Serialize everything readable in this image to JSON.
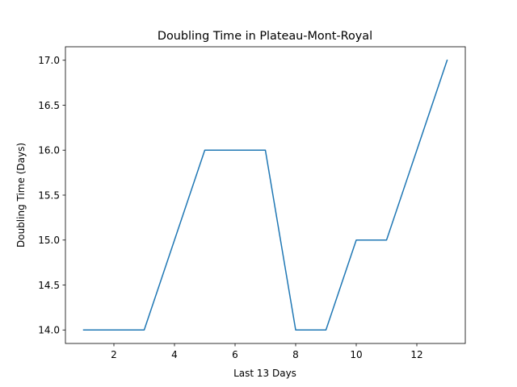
{
  "chart_data": {
    "type": "line",
    "title": "Doubling Time in  Plateau-Mont-Royal",
    "xlabel": "Last 13 Days",
    "ylabel": "Doubling Time (Days)",
    "x": [
      1,
      2,
      3,
      4,
      5,
      6,
      7,
      8,
      9,
      10,
      11,
      12,
      13
    ],
    "series": [
      {
        "values": [
          14,
          14,
          14,
          15,
          16,
          16,
          16,
          14,
          14,
          15,
          15,
          16,
          17
        ],
        "color": "#1f77b4"
      }
    ],
    "xlim": [
      0.4,
      13.6
    ],
    "ylim": [
      13.85,
      17.15
    ],
    "xticks": [
      2,
      4,
      6,
      8,
      10,
      12
    ],
    "xtick_labels": [
      "2",
      "4",
      "6",
      "8",
      "10",
      "12"
    ],
    "yticks": [
      14.0,
      14.5,
      15.0,
      15.5,
      16.0,
      16.5,
      17.0
    ],
    "ytick_labels": [
      "14.0",
      "14.5",
      "15.0",
      "15.5",
      "16.0",
      "16.5",
      "17.0"
    ],
    "grid": false,
    "legend": "none"
  }
}
